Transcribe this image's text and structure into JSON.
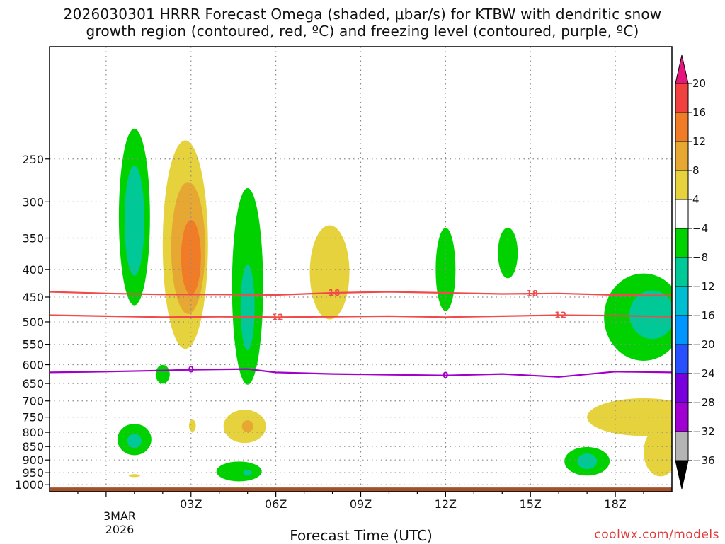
{
  "chart_data": {
    "type": "contour",
    "title_line1": "2026030301 HRRR Forecast Omega (shaded, μbar/s) for KTBW with dendritic snow",
    "title_line2": "growth region (contoured, red, ºC) and freezing level (contoured, purple, ºC)",
    "xlabel": "Forecast Time (UTC)",
    "x_unit": "hours since 00Z 3MAR2026",
    "xlim": [
      -2,
      20
    ],
    "x_ticks": [
      {
        "label": "03Z",
        "value": 3
      },
      {
        "label": "06Z",
        "value": 6
      },
      {
        "label": "09Z",
        "value": 9
      },
      {
        "label": "12Z",
        "value": 12
      },
      {
        "label": "15Z",
        "value": 15
      },
      {
        "label": "18Z",
        "value": 18
      }
    ],
    "date_label_line1": "3MAR",
    "date_label_line2": "2026",
    "y_unit": "hPa",
    "ylim": [
      1030,
      155
    ],
    "y_ticks": [
      250,
      300,
      350,
      400,
      450,
      500,
      550,
      600,
      650,
      700,
      750,
      800,
      850,
      900,
      950,
      1000
    ],
    "terrain_color": "#a0522d",
    "colorbar": {
      "ticks": [
        "20",
        "16",
        "12",
        "8",
        "4",
        "−4",
        "−8",
        "−12",
        "−16",
        "−20",
        "−24",
        "−28",
        "−32",
        "−36"
      ],
      "levels": [
        {
          "range": [
            16,
            20
          ],
          "color": "#f04040"
        },
        {
          "range": [
            12,
            16
          ],
          "color": "#f07c28"
        },
        {
          "range": [
            8,
            12
          ],
          "color": "#e6a832"
        },
        {
          "range": [
            4,
            8
          ],
          "color": "#e6d23c"
        },
        {
          "range": [
            -4,
            4
          ],
          "color": "#ffffff"
        },
        {
          "range": [
            -8,
            -4
          ],
          "color": "#00d200"
        },
        {
          "range": [
            -12,
            -8
          ],
          "color": "#00c896"
        },
        {
          "range": [
            -16,
            -12
          ],
          "color": "#00bed2"
        },
        {
          "range": [
            -20,
            -16
          ],
          "color": "#0096ff"
        },
        {
          "range": [
            -24,
            -20
          ],
          "color": "#2850ff"
        },
        {
          "range": [
            -28,
            -24
          ],
          "color": "#7800dc"
        },
        {
          "range": [
            -32,
            -28
          ],
          "color": "#a000d2"
        },
        {
          "range": [
            -36,
            -32
          ],
          "color": "#b4b4b4"
        }
      ],
      "top_arrow_color": "#e6147d",
      "bottom_arrow_color": "#000000"
    },
    "contour_lines": [
      {
        "name": "-18C isotherm",
        "color": "#f04a4a",
        "labels": [
          "-18",
          "-18"
        ],
        "x": [
          -2,
          0,
          2,
          4,
          6,
          8,
          10,
          12,
          14,
          16,
          18,
          20
        ],
        "y": [
          440,
          443,
          445,
          445,
          446,
          442,
          440,
          442,
          444,
          443,
          446,
          447
        ]
      },
      {
        "name": "-12C isotherm",
        "color": "#f04a4a",
        "labels": [
          "-12",
          "-12"
        ],
        "x": [
          -2,
          0,
          2,
          4,
          6,
          8,
          10,
          12,
          14,
          16,
          18,
          20
        ],
        "y": [
          486,
          488,
          490,
          489,
          490,
          489,
          488,
          490,
          488,
          486,
          487,
          489
        ]
      },
      {
        "name": "freezing level",
        "color": "#a000c8",
        "labels": [
          "0",
          "0"
        ],
        "x": [
          -2,
          0,
          2,
          3,
          4,
          5,
          6,
          8,
          10,
          12,
          14,
          16,
          18,
          20
        ],
        "y": [
          620,
          618,
          615,
          613,
          612,
          611,
          620,
          624,
          626,
          628,
          624,
          632,
          618,
          620
        ]
      }
    ],
    "shaded_regions": [
      {
        "level": "-8 to -4",
        "color": "#00d200",
        "x_center": 1.0,
        "p_center": 320,
        "x_halfwidth": 0.55,
        "p_halfheight": 115
      },
      {
        "level": "-12 to -8",
        "color": "#00c896",
        "x_center": 1.0,
        "p_center": 325,
        "x_halfwidth": 0.35,
        "p_halfheight": 75
      },
      {
        "level": "4 to 8",
        "color": "#e6d23c",
        "x_center": 2.8,
        "p_center": 360,
        "x_halfwidth": 0.8,
        "p_halfheight": 150
      },
      {
        "level": "8 to 12",
        "color": "#e6a832",
        "x_center": 2.9,
        "p_center": 365,
        "x_halfwidth": 0.6,
        "p_halfheight": 100
      },
      {
        "level": "12 to 16",
        "color": "#f07c28",
        "x_center": 3.0,
        "p_center": 380,
        "x_halfwidth": 0.35,
        "p_halfheight": 60
      },
      {
        "level": "-8 to -4",
        "color": "#00d200",
        "x_center": 5.0,
        "p_center": 430,
        "x_halfwidth": 0.55,
        "p_halfheight": 170
      },
      {
        "level": "-12 to -8",
        "color": "#00c896",
        "x_center": 5.0,
        "p_center": 470,
        "x_halfwidth": 0.25,
        "p_halfheight": 85
      },
      {
        "level": "4 to 8",
        "color": "#e6d23c",
        "x_center": 7.9,
        "p_center": 405,
        "x_halfwidth": 0.7,
        "p_halfheight": 80
      },
      {
        "level": "-8 to -4",
        "color": "#00d200",
        "x_center": 12.0,
        "p_center": 400,
        "x_halfwidth": 0.35,
        "p_halfheight": 70
      },
      {
        "level": "-8 to -4",
        "color": "#00d200",
        "x_center": 14.2,
        "p_center": 373,
        "x_halfwidth": 0.35,
        "p_halfheight": 40
      },
      {
        "level": "-8 to -4",
        "color": "#00d200",
        "x_center": 19.0,
        "p_center": 490,
        "x_halfwidth": 1.4,
        "p_halfheight": 90
      },
      {
        "level": "-12 to -8",
        "color": "#00c896",
        "x_center": 19.3,
        "p_center": 485,
        "x_halfwidth": 0.8,
        "p_halfheight": 50
      },
      {
        "level": "-8 to -4",
        "color": "#00d200",
        "x_center": 2.0,
        "p_center": 625,
        "x_halfwidth": 0.25,
        "p_halfheight": 25
      },
      {
        "level": "4 to 8",
        "color": "#e6d23c",
        "x_center": 4.9,
        "p_center": 780,
        "x_halfwidth": 0.75,
        "p_halfheight": 55
      },
      {
        "level": "8 to 12",
        "color": "#e6a832",
        "x_center": 5.0,
        "p_center": 780,
        "x_halfwidth": 0.2,
        "p_halfheight": 20
      },
      {
        "level": "4 to 8",
        "color": "#e6d23c",
        "x_center": 3.05,
        "p_center": 778,
        "x_halfwidth": 0.12,
        "p_halfheight": 20
      },
      {
        "level": "-8 to -4",
        "color": "#00d200",
        "x_center": 1.0,
        "p_center": 825,
        "x_halfwidth": 0.6,
        "p_halfheight": 55
      },
      {
        "level": "-12 to -8",
        "color": "#00c896",
        "x_center": 1.0,
        "p_center": 830,
        "x_halfwidth": 0.25,
        "p_halfheight": 25
      },
      {
        "level": "4 to 8",
        "color": "#e6d23c",
        "x_center": 1.0,
        "p_center": 962,
        "x_halfwidth": 0.2,
        "p_halfheight": 6
      },
      {
        "level": "-8 to -4",
        "color": "#00d200",
        "x_center": 4.7,
        "p_center": 945,
        "x_halfwidth": 0.8,
        "p_halfheight": 40
      },
      {
        "level": "-12 to -8",
        "color": "#00c896",
        "x_center": 5.0,
        "p_center": 950,
        "x_halfwidth": 0.15,
        "p_halfheight": 12
      },
      {
        "level": "-8 to -4",
        "color": "#00d200",
        "x_center": 17.0,
        "p_center": 905,
        "x_halfwidth": 0.8,
        "p_halfheight": 55
      },
      {
        "level": "-12 to -8",
        "color": "#00c896",
        "x_center": 17.0,
        "p_center": 905,
        "x_halfwidth": 0.35,
        "p_halfheight": 30
      },
      {
        "level": "4 to 8",
        "color": "#e6d23c",
        "x_center": 19.0,
        "p_center": 750,
        "x_halfwidth": 2.0,
        "p_halfheight": 60
      },
      {
        "level": "4 to 8",
        "color": "#e6d23c",
        "x_center": 19.6,
        "p_center": 870,
        "x_halfwidth": 0.6,
        "p_halfheight": 90
      }
    ]
  },
  "credit": "coolwx.com/models"
}
